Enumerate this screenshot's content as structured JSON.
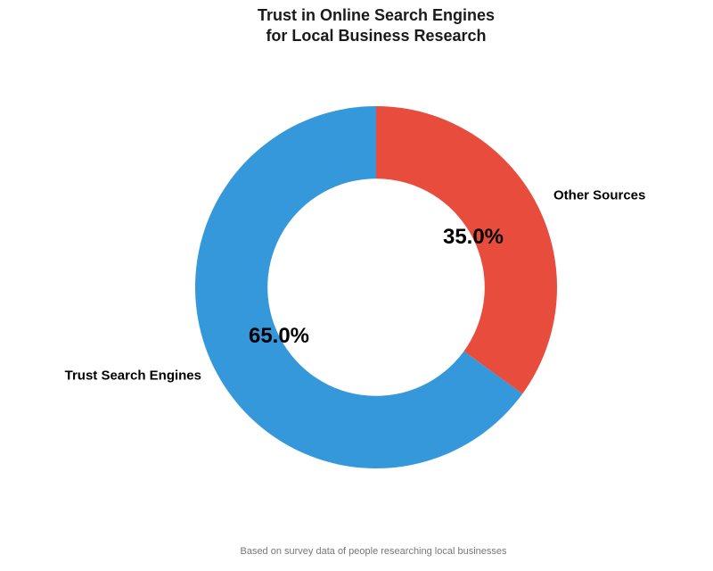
{
  "title": "Trust in Online Search Engines\nfor Local Business Research",
  "footnote": "Based on survey data of people researching local businesses",
  "chart_data": {
    "type": "pie",
    "subtype": "donut",
    "title": "Trust in Online Search Engines for Local Business Research",
    "labels": [
      "Trust Search Engines",
      "Other Sources"
    ],
    "values": [
      65.0,
      35.0
    ],
    "pct_labels": [
      "65.0%",
      "35.0%"
    ],
    "colors": [
      "#3498db",
      "#e74c3c"
    ],
    "start_angle": 90,
    "counterclock": true,
    "donut_hole_ratio": 0.6,
    "legend": "none",
    "annotation": "Based on survey data of people researching local businesses"
  }
}
